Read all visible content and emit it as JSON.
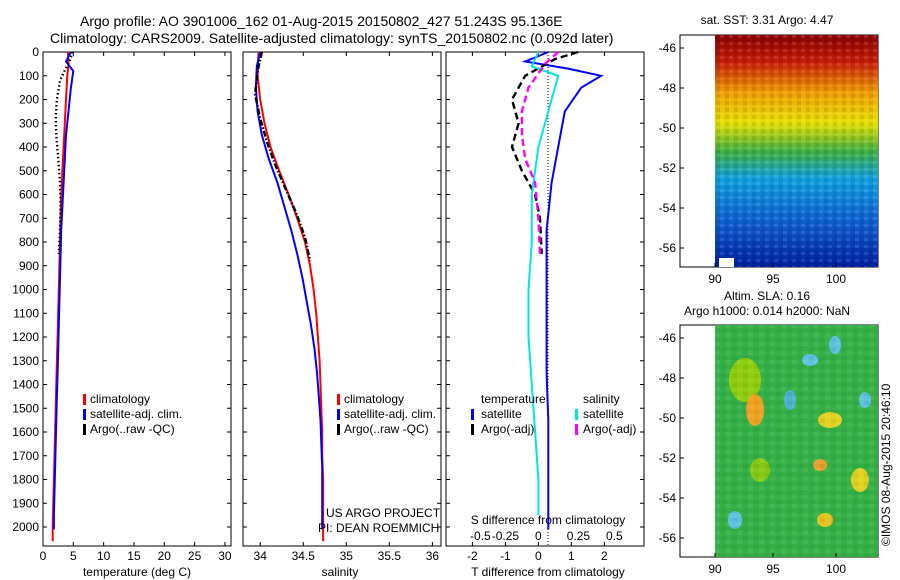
{
  "header": {
    "line1": "Argo profile: AO 3901006_162 01-Aug-2015 20150802_427 51.243S 95.136E",
    "line2": "Climatology: CARS2009. Satellite-adjusted climatology: synTS_20150802.nc (0.092d later)"
  },
  "credits": {
    "project": "US ARGO PROJECT",
    "pi": "PI: DEAN ROEMMICH",
    "imos": "©IMOS 08-Aug-2015 20:46:10"
  },
  "colors": {
    "climatology": "#ff0000",
    "satellite": "#0000ff",
    "argo": "#000000",
    "sat_salinity": "#00e5e5",
    "argo_salinity": "#ff00ff"
  },
  "chart_data": [
    {
      "id": "temperature",
      "type": "line",
      "xlabel": "temperature (deg C)",
      "xlim": [
        0,
        31
      ],
      "xticks": [
        0,
        5,
        10,
        15,
        20,
        25,
        30
      ],
      "ylim": [
        0,
        2080
      ],
      "yticks": [
        0,
        100,
        200,
        300,
        400,
        500,
        600,
        700,
        800,
        900,
        1000,
        1100,
        1200,
        1300,
        1400,
        1500,
        1600,
        1700,
        1800,
        1900,
        2000
      ],
      "legend": [
        "climatology",
        "satellite-adj. clim.",
        "Argo(..raw -QC)"
      ],
      "series": [
        {
          "name": "climatology",
          "style": "solid",
          "color": "#ff0000",
          "points": [
            [
              4.1,
              0
            ],
            [
              4.2,
              50
            ],
            [
              4.0,
              100
            ],
            [
              3.8,
              200
            ],
            [
              3.6,
              300
            ],
            [
              3.4,
              400
            ],
            [
              3.2,
              500
            ],
            [
              3.0,
              600
            ],
            [
              2.9,
              700
            ],
            [
              2.8,
              800
            ],
            [
              2.7,
              900
            ],
            [
              2.6,
              1000
            ],
            [
              2.5,
              1100
            ],
            [
              2.4,
              1200
            ],
            [
              2.3,
              1300
            ],
            [
              2.2,
              1400
            ],
            [
              2.1,
              1500
            ],
            [
              2.0,
              1600
            ],
            [
              1.9,
              1700
            ],
            [
              1.8,
              1800
            ],
            [
              1.7,
              1900
            ],
            [
              1.6,
              2000
            ],
            [
              1.6,
              2060
            ]
          ]
        },
        {
          "name": "satellite-adj. clim.",
          "style": "solid",
          "color": "#0000ff",
          "points": [
            [
              4.6,
              0
            ],
            [
              3.8,
              40
            ],
            [
              5.0,
              80
            ],
            [
              4.6,
              150
            ],
            [
              4.2,
              250
            ],
            [
              3.8,
              350
            ],
            [
              3.6,
              450
            ],
            [
              3.4,
              550
            ],
            [
              3.2,
              650
            ],
            [
              3.0,
              750
            ],
            [
              2.9,
              850
            ],
            [
              2.8,
              950
            ],
            [
              2.7,
              1050
            ],
            [
              2.6,
              1150
            ],
            [
              2.5,
              1250
            ],
            [
              2.4,
              1350
            ],
            [
              2.3,
              1450
            ],
            [
              2.2,
              1550
            ],
            [
              2.1,
              1650
            ],
            [
              2.0,
              1750
            ],
            [
              1.9,
              1850
            ],
            [
              1.8,
              1950
            ],
            [
              1.8,
              2010
            ]
          ]
        },
        {
          "name": "Argo(..raw -QC)",
          "style": "dotted",
          "color": "#000000",
          "points": [
            [
              4.9,
              0
            ],
            [
              4.5,
              30
            ],
            [
              3.9,
              60
            ],
            [
              2.8,
              120
            ],
            [
              2.3,
              200
            ],
            [
              2.1,
              280
            ],
            [
              2.2,
              350
            ],
            [
              2.5,
              450
            ],
            [
              2.8,
              550
            ],
            [
              2.9,
              650
            ],
            [
              2.8,
              750
            ],
            [
              2.6,
              850
            ]
          ]
        }
      ]
    },
    {
      "id": "salinity",
      "type": "line",
      "xlabel": "salinity",
      "xlim": [
        33.8,
        36.1
      ],
      "xticks": [
        34,
        34.5,
        35,
        35.5,
        36
      ],
      "ylim": [
        0,
        2080
      ],
      "legend": [
        "climatology",
        "satellite-adj. clim.",
        "Argo(..raw -QC)"
      ],
      "series": [
        {
          "name": "climatology",
          "style": "solid",
          "color": "#ff0000",
          "points": [
            [
              33.98,
              0
            ],
            [
              33.97,
              100
            ],
            [
              34.0,
              200
            ],
            [
              34.05,
              300
            ],
            [
              34.12,
              400
            ],
            [
              34.22,
              500
            ],
            [
              34.33,
              600
            ],
            [
              34.43,
              700
            ],
            [
              34.52,
              800
            ],
            [
              34.58,
              900
            ],
            [
              34.62,
              1000
            ],
            [
              34.65,
              1100
            ],
            [
              34.67,
              1200
            ],
            [
              34.69,
              1300
            ],
            [
              34.7,
              1400
            ],
            [
              34.71,
              1500
            ],
            [
              34.72,
              1600
            ],
            [
              34.72,
              1700
            ],
            [
              34.73,
              1800
            ],
            [
              34.73,
              1900
            ],
            [
              34.73,
              2060
            ]
          ]
        },
        {
          "name": "satellite-adj. clim.",
          "style": "solid",
          "color": "#0000ff",
          "points": [
            [
              34.0,
              0
            ],
            [
              33.96,
              60
            ],
            [
              33.95,
              150
            ],
            [
              33.97,
              250
            ],
            [
              34.02,
              350
            ],
            [
              34.1,
              450
            ],
            [
              34.2,
              550
            ],
            [
              34.28,
              650
            ],
            [
              34.36,
              750
            ],
            [
              34.43,
              850
            ],
            [
              34.49,
              950
            ],
            [
              34.54,
              1050
            ],
            [
              34.59,
              1150
            ],
            [
              34.63,
              1250
            ],
            [
              34.66,
              1350
            ],
            [
              34.68,
              1450
            ],
            [
              34.7,
              1550
            ],
            [
              34.71,
              1650
            ],
            [
              34.72,
              1750
            ],
            [
              34.72,
              1850
            ],
            [
              34.72,
              1950
            ],
            [
              34.72,
              2010
            ]
          ]
        },
        {
          "name": "Argo(..raw -QC)",
          "style": "dashdot",
          "color": "#000000",
          "points": [
            [
              34.02,
              0
            ],
            [
              33.97,
              80
            ],
            [
              33.94,
              180
            ],
            [
              34.0,
              280
            ],
            [
              34.08,
              380
            ],
            [
              34.18,
              480
            ],
            [
              34.3,
              580
            ],
            [
              34.42,
              680
            ],
            [
              34.52,
              780
            ],
            [
              34.58,
              880
            ]
          ]
        }
      ]
    },
    {
      "id": "difference",
      "type": "line",
      "xlabel": "T difference from climatology",
      "x2label": "S difference from climatology",
      "xlim": [
        -2.8,
        3.2
      ],
      "xticks": [
        -2,
        -1,
        0,
        1,
        2
      ],
      "x2ticks": [
        "-0.5",
        "-0.25",
        "0",
        "0.25",
        "0.5"
      ],
      "ylim": [
        0,
        2080
      ],
      "legend_titles": [
        "temperature",
        "salinity"
      ],
      "legend": [
        "satellite",
        "Argo(-adj)",
        "satellite",
        "Argo(-adj)"
      ],
      "series": [
        {
          "name": "satellite",
          "group": "temperature",
          "style": "solid",
          "color": "#0000ff",
          "points": [
            [
              0.3,
              0
            ],
            [
              -0.4,
              40
            ],
            [
              0.9,
              70
            ],
            [
              1.9,
              100
            ],
            [
              1.3,
              150
            ],
            [
              0.8,
              250
            ],
            [
              0.6,
              400
            ],
            [
              0.4,
              550
            ],
            [
              0.25,
              750
            ],
            [
              0.25,
              950
            ],
            [
              0.25,
              1150
            ],
            [
              0.25,
              1350
            ],
            [
              0.3,
              1550
            ],
            [
              0.3,
              1750
            ],
            [
              0.3,
              1950
            ],
            [
              0.3,
              2010
            ]
          ]
        },
        {
          "name": "Argo(-adj)",
          "group": "temperature",
          "style": "dashed",
          "color": "#000000",
          "points": [
            [
              1.2,
              0
            ],
            [
              0.5,
              30
            ],
            [
              -0.4,
              100
            ],
            [
              -0.8,
              200
            ],
            [
              -0.6,
              300
            ],
            [
              -0.8,
              400
            ],
            [
              -0.5,
              500
            ],
            [
              -0.1,
              600
            ],
            [
              0.05,
              700
            ],
            [
              0.1,
              850
            ]
          ]
        },
        {
          "name": "satellite",
          "group": "salinity",
          "style": "solid",
          "color": "#00e5e5",
          "points": [
            [
              0,
              0
            ],
            [
              -0.2,
              60
            ],
            [
              0.6,
              100
            ],
            [
              0.4,
              200
            ],
            [
              0.0,
              400
            ],
            [
              -0.2,
              600
            ],
            [
              -0.2,
              800
            ],
            [
              -0.3,
              1000
            ],
            [
              -0.3,
              1200
            ],
            [
              -0.2,
              1400
            ],
            [
              -0.1,
              1600
            ],
            [
              0.0,
              1800
            ],
            [
              0.0,
              1950
            ]
          ]
        },
        {
          "name": "Argo(-adj)",
          "group": "salinity",
          "style": "dashed",
          "color": "#ff00ff",
          "points": [
            [
              0.6,
              0
            ],
            [
              0.2,
              50
            ],
            [
              -0.3,
              150
            ],
            [
              -0.5,
              250
            ],
            [
              -0.5,
              350
            ],
            [
              -0.4,
              450
            ],
            [
              -0.1,
              550
            ],
            [
              0.0,
              700
            ],
            [
              0.05,
              850
            ]
          ]
        }
      ]
    },
    {
      "id": "sst-map",
      "type": "heatmap",
      "title": "sat. SST: 3.31 Argo: 4.47",
      "xticks": [
        "90",
        "95",
        "100"
      ],
      "yticks": [
        "-46",
        "-48",
        "-50",
        "-52",
        "-54",
        "-56"
      ]
    },
    {
      "id": "sla-map",
      "type": "heatmap",
      "title": "Altim. SLA: 0.16",
      "subtitle": "Argo h1000: 0.014 h2000: NaN",
      "xticks": [
        "90",
        "95",
        "100"
      ],
      "yticks": [
        "-46",
        "-48",
        "-50",
        "-52",
        "-54",
        "-56"
      ]
    }
  ]
}
